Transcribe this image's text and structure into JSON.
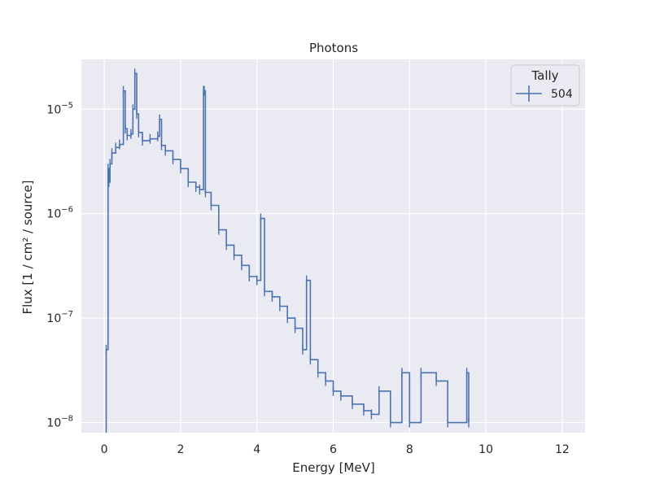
{
  "colors": {
    "plot_bg": "#eaeaf2",
    "grid": "#ffffff",
    "series": "#4c72b0",
    "legend_bg": "#eaeaf2",
    "legend_border": "#cccccc"
  },
  "chart_data": {
    "type": "line",
    "title": "Photons",
    "xlabel": "Energy [MeV]",
    "ylabel": "Flux [1 / cm² / source]",
    "yscale": "log",
    "xlim": [
      -0.6,
      12.6
    ],
    "ylim": [
      8e-09,
      3e-05
    ],
    "xticks": [
      0,
      2,
      4,
      6,
      8,
      10,
      12
    ],
    "xtick_labels": [
      "0",
      "2",
      "4",
      "6",
      "8",
      "10",
      "12"
    ],
    "yticks": [
      1e-08,
      1e-07,
      1e-06,
      1e-05
    ],
    "ytick_labels": [
      {
        "base": "10",
        "exp": "−8"
      },
      {
        "base": "10",
        "exp": "−7"
      },
      {
        "base": "10",
        "exp": "−6"
      },
      {
        "base": "10",
        "exp": "−5"
      }
    ],
    "grid": true,
    "legend": {
      "title": "Tally",
      "position": "top-right",
      "entries": [
        "504"
      ]
    },
    "series": [
      {
        "name": "504",
        "style": "step-with-errorbars",
        "x": [
          0.0,
          0.05,
          0.1,
          0.12,
          0.15,
          0.2,
          0.3,
          0.4,
          0.5,
          0.55,
          0.6,
          0.7,
          0.75,
          0.8,
          0.85,
          0.9,
          1.0,
          1.2,
          1.4,
          1.45,
          1.5,
          1.6,
          1.8,
          2.0,
          2.2,
          2.4,
          2.5,
          2.6,
          2.62,
          2.65,
          2.8,
          3.0,
          3.2,
          3.4,
          3.6,
          3.8,
          4.0,
          4.1,
          4.2,
          4.4,
          4.6,
          4.8,
          5.0,
          5.2,
          5.3,
          5.4,
          5.6,
          5.8,
          6.0,
          6.2,
          6.5,
          6.8,
          7.0,
          7.2,
          7.5,
          7.8,
          8.0,
          8.3,
          8.7,
          9.0,
          9.5,
          9.55
        ],
        "y": [
          7e-09,
          5e-08,
          2.7e-06,
          2e-06,
          3e-06,
          3.8e-06,
          4.3e-06,
          4.6e-06,
          1.5e-05,
          6.5e-06,
          5.6e-06,
          5.8e-06,
          1e-05,
          2.2e-05,
          9e-06,
          6e-06,
          5e-06,
          5.2e-06,
          5.5e-06,
          8e-06,
          4.5e-06,
          4e-06,
          3.3e-06,
          2.7e-06,
          2e-06,
          1.8e-06,
          1.7e-06,
          1.5e-05,
          1.5e-05,
          1.6e-06,
          1.2e-06,
          7e-07,
          5e-07,
          4e-07,
          3.2e-07,
          2.5e-07,
          2.3e-07,
          9e-07,
          1.8e-07,
          1.6e-07,
          1.3e-07,
          1e-07,
          8e-08,
          5e-08,
          2.3e-07,
          4e-08,
          3e-08,
          2.5e-08,
          2e-08,
          1.8e-08,
          1.5e-08,
          1.3e-08,
          1.2e-08,
          2e-08,
          1e-08,
          3e-08,
          1e-08,
          3e-08,
          2.5e-08,
          1e-08,
          3e-08,
          1e-08
        ]
      }
    ]
  }
}
